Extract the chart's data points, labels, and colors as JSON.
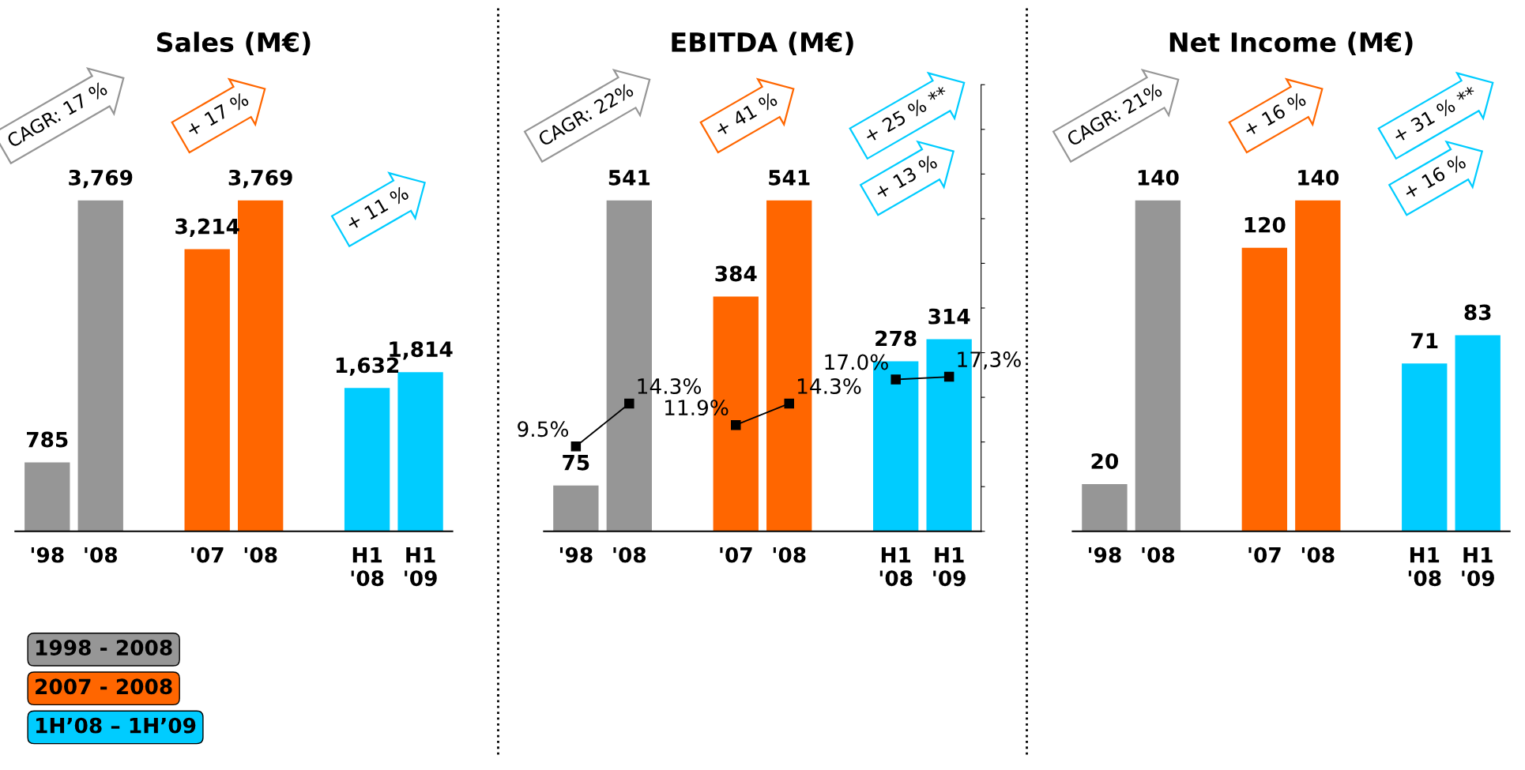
{
  "chart_data": [
    {
      "type": "bar",
      "title": "Sales (M€)",
      "categories": [
        "'98",
        "'08",
        null,
        "'07",
        "'08",
        null,
        "H1\n'08",
        "H1\n'09"
      ],
      "tick_labels": "x",
      "legend": "bottom left",
      "series": [
        {
          "name": "1998 - 2008",
          "color": "#969696",
          "values": [
            785,
            3769,
            null,
            null,
            null,
            null,
            null,
            null
          ],
          "value_labels": [
            "785",
            "3,769",
            null,
            null,
            null,
            null,
            null,
            null
          ]
        },
        {
          "name": "2007 - 2008",
          "color": "#ff6600",
          "values": [
            null,
            null,
            null,
            3214,
            3769,
            null,
            null,
            null
          ],
          "value_labels": [
            null,
            null,
            null,
            "3,214",
            "3,769",
            null,
            null,
            null
          ]
        },
        {
          "name": "1H’08 – 1H’09",
          "color": "#00ccff",
          "values": [
            null,
            null,
            null,
            null,
            null,
            null,
            1632,
            1814
          ],
          "value_labels": [
            null,
            null,
            null,
            null,
            null,
            null,
            "1,632",
            "1,814"
          ]
        }
      ],
      "annotations": [
        "CAGR: 17 %",
        "+ 17 %",
        "+ 11 %"
      ]
    },
    {
      "type": "bar",
      "title": "EBITDA (M€)",
      "categories": [
        "'98",
        "'08",
        null,
        "'07",
        "'08",
        null,
        "H1\n'08",
        "H1\n'09"
      ],
      "tick_labels": "x",
      "y2lim": [
        0,
        50
      ],
      "y2ticks": [
        {
          "value": 0,
          "label": null
        },
        {
          "value": 5,
          "label": null
        },
        {
          "value": 10,
          "label": null
        },
        {
          "value": 15,
          "label": null
        },
        {
          "value": 20,
          "label": null
        },
        {
          "value": 25,
          "label": null
        },
        {
          "value": 30,
          "label": null
        },
        {
          "value": 35,
          "label": null
        },
        {
          "value": 40,
          "label": null
        },
        {
          "value": 45,
          "label": null
        },
        {
          "value": 50,
          "label": null
        }
      ],
      "series": [
        {
          "color": "#969696",
          "values": [
            75,
            541,
            null,
            null,
            null,
            null,
            null,
            null
          ],
          "value_labels": [
            "75",
            "541",
            null,
            null,
            null,
            null,
            null,
            null
          ]
        },
        {
          "color": "#ff6600",
          "values": [
            null,
            null,
            null,
            384,
            541,
            null,
            null,
            null
          ],
          "value_labels": [
            null,
            null,
            null,
            "384",
            "541",
            null,
            null,
            null
          ]
        },
        {
          "color": "#00ccff",
          "values": [
            null,
            null,
            null,
            null,
            null,
            null,
            278,
            314
          ],
          "value_labels": [
            null,
            null,
            null,
            null,
            null,
            null,
            "278",
            "314"
          ]
        },
        {
          "type": "line",
          "axis": "y2",
          "color": "#000000",
          "marker": "square",
          "values": [
            9.5,
            14.3,
            null,
            null,
            null,
            null,
            null,
            null
          ],
          "value_labels": [
            "9.5%",
            "14.3%",
            null,
            null,
            null,
            null,
            null,
            null
          ]
        },
        {
          "type": "line",
          "axis": "y2",
          "color": "#000000",
          "marker": "square",
          "values": [
            null,
            null,
            null,
            11.9,
            14.3,
            null,
            null,
            null
          ],
          "value_labels": [
            null,
            null,
            null,
            "11.9%",
            "14.3%",
            null,
            null,
            null
          ]
        },
        {
          "type": "line",
          "axis": "y2",
          "color": "#000000",
          "marker": "square",
          "values": [
            null,
            null,
            null,
            null,
            null,
            null,
            17.0,
            17.3
          ],
          "value_labels": [
            null,
            null,
            null,
            null,
            null,
            null,
            "17.0%",
            "17,3%"
          ]
        }
      ],
      "annotations": [
        "CAGR: 22%",
        "+ 41 %",
        "+ 25 % **",
        "+ 13 %"
      ]
    },
    {
      "type": "bar",
      "title": "Net Income (M€)",
      "categories": [
        "'98",
        "'08",
        null,
        "'07",
        "'08",
        null,
        "H1\n'08",
        "H1\n'09"
      ],
      "tick_labels": "x",
      "series": [
        {
          "color": "#969696",
          "values": [
            20,
            140,
            null,
            null,
            null,
            null,
            null,
            null
          ],
          "value_labels": [
            "20",
            "140",
            null,
            null,
            null,
            null,
            null,
            null
          ]
        },
        {
          "color": "#ff6600",
          "values": [
            null,
            null,
            null,
            120,
            140,
            null,
            null,
            null
          ],
          "value_labels": [
            null,
            null,
            null,
            "120",
            "140",
            null,
            null,
            null
          ]
        },
        {
          "color": "#00ccff",
          "values": [
            null,
            null,
            null,
            null,
            null,
            null,
            71,
            83
          ],
          "value_labels": [
            null,
            null,
            null,
            null,
            null,
            null,
            "71",
            "83"
          ]
        }
      ],
      "annotations": [
        "CAGR: 21%",
        "+ 16 %",
        "+ 31 % **",
        "+ 16 %"
      ]
    }
  ]
}
